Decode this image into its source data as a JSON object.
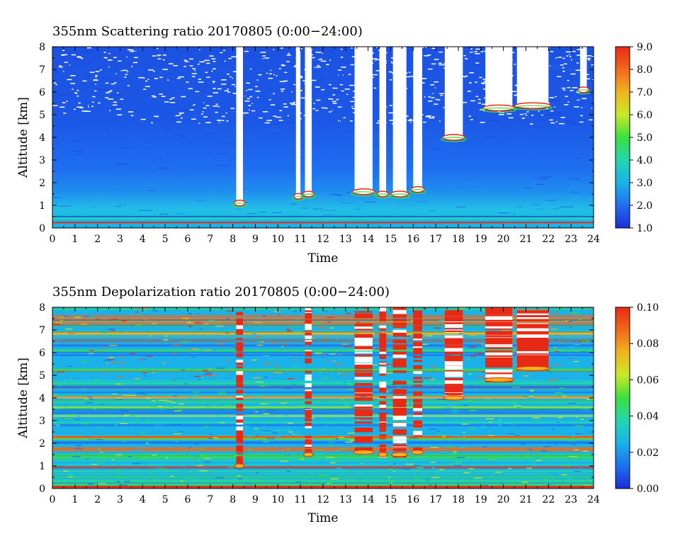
{
  "chart_data": [
    {
      "type": "heatmap",
      "title": "355nm Scattering ratio  20170805 (0:00−24:00)",
      "xlabel": "Time",
      "ylabel": "Altitude [km]",
      "xlim": [
        0,
        24
      ],
      "ylim": [
        0,
        8
      ],
      "x_ticks": [
        "0",
        "1",
        "2",
        "3",
        "4",
        "5",
        "6",
        "7",
        "8",
        "9",
        "10",
        "11",
        "12",
        "13",
        "14",
        "15",
        "16",
        "17",
        "18",
        "19",
        "20",
        "21",
        "22",
        "23",
        "24"
      ],
      "y_ticks": [
        "0",
        "1",
        "2",
        "3",
        "4",
        "5",
        "6",
        "7",
        "8"
      ],
      "colorbar": {
        "range": [
          1.0,
          9.0
        ],
        "ticks": [
          "1.0",
          "2.0",
          "3.0",
          "4.0",
          "5.0",
          "6.0",
          "7.0",
          "8.0",
          "9.0"
        ],
        "colors": [
          "#1c2dd8",
          "#1f6ff0",
          "#1ab2e8",
          "#22d6b0",
          "#3ce03c",
          "#c8e828",
          "#f0b41e",
          "#f06a1a",
          "#e82a14"
        ]
      },
      "clouds": [
        {
          "time": [
            8.15,
            8.45
          ],
          "base_km": 1.1,
          "top_km": 8.0
        },
        {
          "time": [
            10.8,
            11.0
          ],
          "base_km": 1.4,
          "top_km": 8.0
        },
        {
          "time": [
            11.2,
            11.5
          ],
          "base_km": 1.5,
          "top_km": 8.0
        },
        {
          "time": [
            13.4,
            14.2
          ],
          "base_km": 1.6,
          "top_km": 8.0
        },
        {
          "time": [
            14.5,
            14.8
          ],
          "base_km": 1.5,
          "top_km": 8.0
        },
        {
          "time": [
            15.1,
            15.7
          ],
          "base_km": 1.5,
          "top_km": 8.0
        },
        {
          "time": [
            16.0,
            16.4
          ],
          "base_km": 1.7,
          "top_km": 8.0
        },
        {
          "time": [
            17.4,
            18.2
          ],
          "base_km": 4.0,
          "top_km": 8.0
        },
        {
          "time": [
            19.2,
            20.4
          ],
          "base_km": 5.3,
          "top_km": 8.0
        },
        {
          "time": [
            20.6,
            22.0
          ],
          "base_km": 5.4,
          "top_km": 8.0
        },
        {
          "time": [
            23.4,
            23.7
          ],
          "base_km": 6.1,
          "top_km": 8.0
        }
      ]
    },
    {
      "type": "heatmap",
      "title": "355nm Depolarization ratio  20170805 (0:00−24:00)",
      "xlabel": "Time",
      "ylabel": "Altitude [km]",
      "xlim": [
        0,
        24
      ],
      "ylim": [
        0,
        8
      ],
      "x_ticks": [
        "0",
        "1",
        "2",
        "3",
        "4",
        "5",
        "6",
        "7",
        "8",
        "9",
        "10",
        "11",
        "12",
        "13",
        "14",
        "15",
        "16",
        "17",
        "18",
        "19",
        "20",
        "21",
        "22",
        "23",
        "24"
      ],
      "y_ticks": [
        "0",
        "1",
        "2",
        "3",
        "4",
        "5",
        "6",
        "7",
        "8"
      ],
      "colorbar": {
        "range": [
          0.0,
          0.1
        ],
        "ticks": [
          "0.00",
          "0.02",
          "0.04",
          "0.06",
          "0.08",
          "0.10"
        ],
        "colors": [
          "#1c2dd8",
          "#1f6ff0",
          "#1ab2e8",
          "#22d6b0",
          "#3ce03c",
          "#c8e828",
          "#f0b41e",
          "#f06a1a",
          "#e82a14"
        ]
      },
      "high_depol_regions": [
        {
          "time": [
            8.15,
            8.45
          ],
          "base_km": 1.0,
          "top_km": 8.0
        },
        {
          "time": [
            11.2,
            11.5
          ],
          "base_km": 1.5,
          "top_km": 8.0
        },
        {
          "time": [
            13.4,
            14.2
          ],
          "base_km": 1.6,
          "top_km": 8.0
        },
        {
          "time": [
            14.5,
            14.8
          ],
          "base_km": 1.5,
          "top_km": 8.0
        },
        {
          "time": [
            15.1,
            15.7
          ],
          "base_km": 1.5,
          "top_km": 8.0
        },
        {
          "time": [
            16.0,
            16.4
          ],
          "base_km": 1.6,
          "top_km": 8.0
        },
        {
          "time": [
            17.4,
            18.2
          ],
          "base_km": 4.0,
          "top_km": 8.0
        },
        {
          "time": [
            19.2,
            20.4
          ],
          "base_km": 4.8,
          "top_km": 8.0
        },
        {
          "time": [
            20.6,
            22.0
          ],
          "base_km": 5.3,
          "top_km": 8.0
        }
      ]
    }
  ]
}
